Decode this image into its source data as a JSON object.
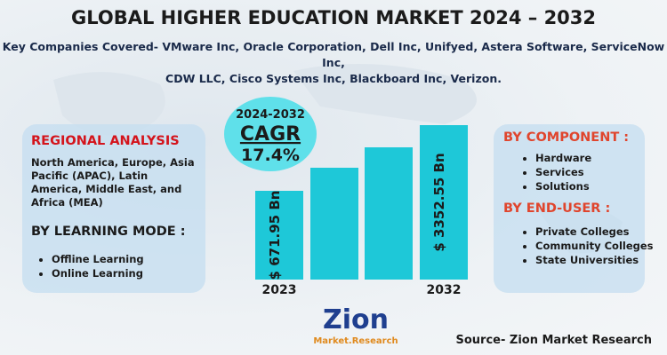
{
  "header": {
    "title": "GLOBAL HIGHER EDUCATION MARKET 2024 – 2032",
    "subtitle_lines": [
      "Key Companies Covered- VMware Inc, Oracle Corporation, Dell Inc, Unifyed, Astera Software, ServiceNow Inc,",
      "CDW LLC, Cisco Systems Inc, Blackboard Inc, Verizon."
    ]
  },
  "left_panel": {
    "regional_title": "REGIONAL ANALYSIS",
    "regional_lines": [
      "North America, Europe, Asia",
      "Pacific (APAC), Latin",
      "America, Middle East, and",
      "Africa (MEA)"
    ],
    "mode_title": "BY LEARNING MODE :",
    "modes": [
      "Offline Learning",
      "Online Learning"
    ]
  },
  "cagr": {
    "period": "2024-2032",
    "label": "CAGR",
    "value": "17.4%"
  },
  "bars": {
    "first_label": "$ 671.95 Bn",
    "last_label": "$ 3352.55 Bn",
    "first_year": "2023",
    "last_year": "2032"
  },
  "right_panel": {
    "component_title": "BY COMPONENT :",
    "components": [
      "Hardware",
      "Services",
      "Solutions"
    ],
    "end_user_title": "BY END-USER :",
    "end_users": [
      "Private Colleges",
      "Community Colleges",
      "State Universities"
    ]
  },
  "logo": {
    "name": "Zion",
    "tagline": "Market.Research"
  },
  "source": "Source- Zion Market Research"
}
